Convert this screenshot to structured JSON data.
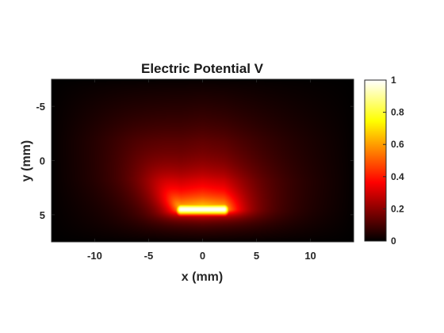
{
  "chart_data": {
    "type": "heatmap",
    "title": "Electric Potential V",
    "xlabel": "x (mm)",
    "ylabel": "y (mm)",
    "xlim": [
      -14,
      14
    ],
    "ylim": [
      -7.5,
      7.5
    ],
    "y_axis_reversed": true,
    "x_ticks": [
      -10,
      -5,
      0,
      5,
      10
    ],
    "x_tick_labels": [
      "-10",
      "-5",
      "0",
      "5",
      "10"
    ],
    "y_ticks": [
      -5,
      0,
      5
    ],
    "y_tick_labels": [
      "-5",
      "0",
      "5"
    ],
    "colormap": "hot",
    "colorbar": {
      "range": [
        0,
        1
      ],
      "ticks": [
        0,
        0.2,
        0.4,
        0.6,
        0.8,
        1
      ],
      "tick_labels": [
        "0",
        "0.2",
        "0.4",
        "0.6",
        "0.8",
        "1"
      ]
    },
    "field_summary": {
      "peak_value": 1,
      "peak_segment_x": [
        -2,
        2
      ],
      "peak_segment_y": 4.5,
      "spread_direction": "upper-left",
      "edge_value": 0
    }
  }
}
